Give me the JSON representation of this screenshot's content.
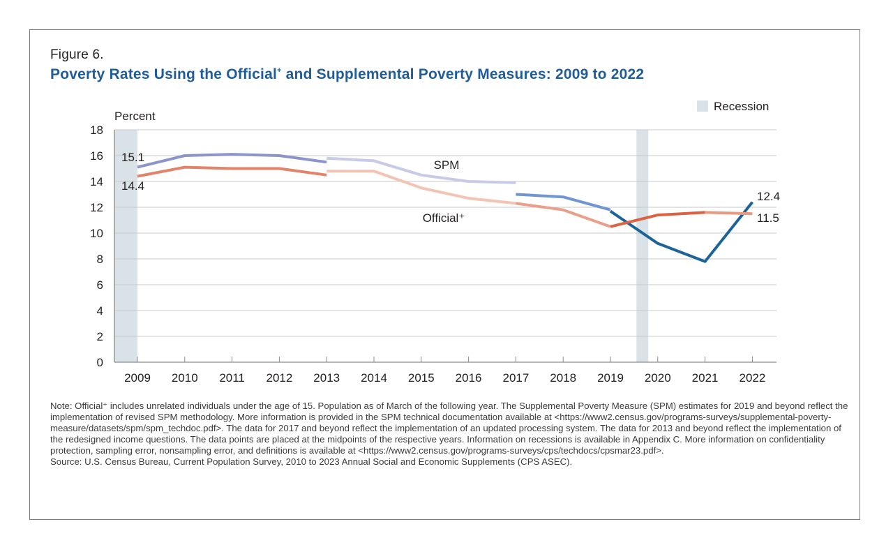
{
  "figure": {
    "label": "Figure 6.",
    "title_part1": "Poverty Rates Using the Official",
    "title_sup": "+",
    "title_part2": " and Supplemental Poverty Measures: 2009 to 2022"
  },
  "notes": {
    "note": "Note: Official⁺ includes unrelated individuals under the age of 15. Population as of March of the following year. The Supplemental Poverty Measure (SPM) estimates for 2019 and beyond reflect the implementation of revised SPM methodology. More information is provided in the SPM technical documentation available at <https://www2.census.gov/programs-surveys/supplemental-poverty-measure/datasets/spm/spm_techdoc.pdf>. The data for 2017 and beyond reflect the implementation of an updated processing system. The data for 2013 and beyond reflect the implementation of the redesigned income questions. The data points are placed at the midpoints of the respective years. Information on recessions is available in Appendix C. More information on confidentiality protection, sampling error, nonsampling error, and definitions is available at <https://www2.census.gov/programs-surveys/cps/techdocs/cpsmar23.pdf>.",
    "source": "Source: U.S. Census Bureau, Current Population Survey, 2010 to 2023 Annual Social and Economic Supplements (CPS ASEC)."
  },
  "chart_data": {
    "type": "line",
    "title": "Poverty Rates Using the Official+ and Supplemental Poverty Measures: 2009 to 2022",
    "xlabel": "",
    "ylabel": "Percent",
    "ylim": [
      0,
      18
    ],
    "yticks": [
      0,
      2,
      4,
      6,
      8,
      10,
      12,
      14,
      16,
      18
    ],
    "xticks": [
      "2009",
      "2010",
      "2011",
      "2012",
      "2013",
      "2014",
      "2015",
      "2016",
      "2017",
      "2018",
      "2019",
      "2020",
      "2021",
      "2022"
    ],
    "grid": true,
    "legend": {
      "position": "top-right",
      "entries": [
        {
          "label": "Recession",
          "color": "#d9e2e6"
        }
      ]
    },
    "recessions": [
      {
        "start": 2008.5,
        "end": 2009.0
      },
      {
        "start": 2019.55,
        "end": 2019.8
      }
    ],
    "series": [
      {
        "name": "SPM",
        "segments": [
          {
            "x": [
              2009,
              2010,
              2011,
              2012,
              2013
            ],
            "y": [
              15.1,
              16.0,
              16.1,
              16.0,
              15.5
            ],
            "color": "#8c95c9"
          },
          {
            "x": [
              2013,
              2014,
              2015,
              2016,
              2017
            ],
            "y": [
              15.8,
              15.6,
              14.5,
              14.0,
              13.9
            ],
            "color": "#c7cbe6"
          },
          {
            "x": [
              2017,
              2018,
              2019
            ],
            "y": [
              13.0,
              12.8,
              11.8
            ],
            "color": "#6f96d2"
          },
          {
            "x": [
              2019,
              2020,
              2021,
              2022
            ],
            "y": [
              11.7,
              9.2,
              7.8,
              12.4
            ],
            "color": "#1c6399"
          }
        ]
      },
      {
        "name": "Official+",
        "segments": [
          {
            "x": [
              2009,
              2010,
              2011,
              2012,
              2013
            ],
            "y": [
              14.4,
              15.1,
              15.0,
              15.0,
              14.5
            ],
            "color": "#e2836a"
          },
          {
            "x": [
              2013,
              2014,
              2015,
              2016,
              2017
            ],
            "y": [
              14.8,
              14.8,
              13.5,
              12.7,
              12.3
            ],
            "color": "#f3c3b3"
          },
          {
            "x": [
              2017,
              2018,
              2019
            ],
            "y": [
              12.3,
              11.8,
              10.5
            ],
            "color": "#e8a08a"
          },
          {
            "x": [
              2019,
              2020,
              2021
            ],
            "y": [
              10.5,
              11.4,
              11.6
            ],
            "color": "#db6341"
          },
          {
            "x": [
              2021,
              2022
            ],
            "y": [
              11.6,
              11.5
            ],
            "color": "#e89a80"
          }
        ]
      }
    ],
    "annotations": [
      {
        "text": "15.1",
        "series": "SPM",
        "year": 2009
      },
      {
        "text": "14.4",
        "series": "Official+",
        "year": 2009
      },
      {
        "text": "12.4",
        "series": "SPM",
        "year": 2022
      },
      {
        "text": "11.5",
        "series": "Official+",
        "year": 2022
      },
      {
        "text": "SPM",
        "series": "SPM",
        "role": "series-label"
      },
      {
        "text": "Official⁺",
        "series": "Official+",
        "role": "series-label"
      }
    ]
  }
}
